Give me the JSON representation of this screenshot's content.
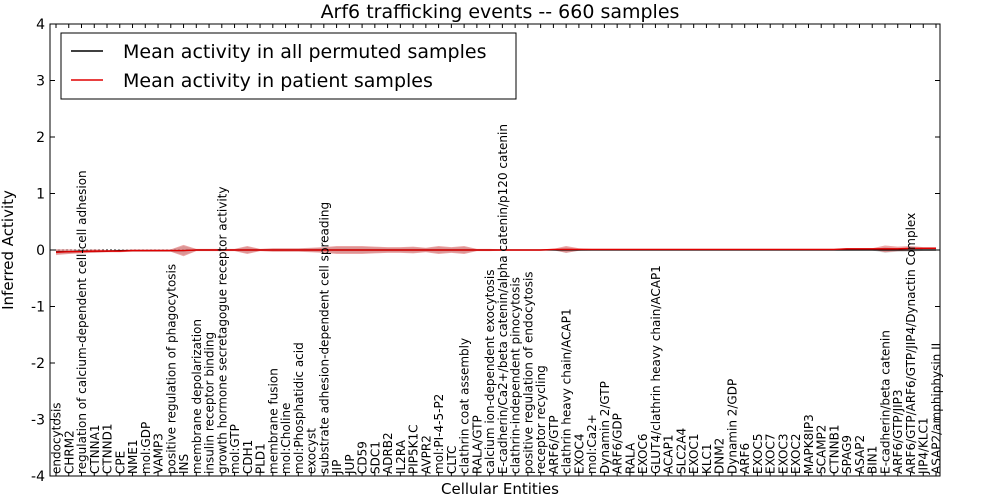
{
  "chart_data": {
    "type": "line",
    "title": "Arf6 trafficking events -- 660 samples",
    "xlabel": "Cellular Entities",
    "ylabel": "Inferred Activity",
    "ylim": [
      -4,
      4
    ],
    "yticks": [
      -4,
      -3,
      -2,
      -1,
      0,
      1,
      2,
      3,
      4
    ],
    "legend_position": "top-left",
    "colors": {
      "permuted": "#000000",
      "patient": "#e00000",
      "band": "#e06060",
      "grey_band": "#b0b0b0"
    },
    "categories": [
      "endocytosis",
      "CHRM2",
      "regulation of calcium-dependent cell-cell adhesion",
      "CTNNA1",
      "CTNND1",
      "CPE",
      "NME1",
      "mol:GDP",
      "VAMP3",
      "positive regulation of phagocytosis",
      "INS",
      "membrane depolarization",
      "insulin receptor binding",
      "growth hormone secretagogue receptor activity",
      "mol:GTP",
      "CDH1",
      "PLD1",
      "membrane fusion",
      "mol:Choline",
      "mol:Phosphatidic acid",
      "exocyst",
      "substrate adhesion-dependent cell spreading",
      "JIP",
      "JUP",
      "CD59",
      "SDC1",
      "ADRB2",
      "IL2RA",
      "PIP5K1C",
      "AVPR2",
      "mol:PI-4-5-P2",
      "CLTC",
      "clathrin coat assembly",
      "RALA/GTP",
      "calcium ion-dependent exocytosis",
      "E-cadherin/Ca2+/beta catenin/alpha catenin/p120 catenin",
      "clathrin-independent pinocytosis",
      "positive regulation of endocytosis",
      "receptor recycling",
      "ARF6/GTP",
      "clathrin heavy chain/ACAP1",
      "EXOC4",
      "mol:Ca2+",
      "Dynamin 2/GTP",
      "ARF6/GDP",
      "RALA",
      "EXOC6",
      "GLUT4/clathrin heavy chain/ACAP1",
      "ACAP1",
      "SLC2A4",
      "EXOC1",
      "KLC1",
      "DNM2",
      "Dynamin 2/GDP",
      "ARF6",
      "EXOC5",
      "EXOC7",
      "EXOC3",
      "EXOC2",
      "MAPK8IP3",
      "SCAMP2",
      "CTNNB1",
      "SPAG9",
      "ASAP2",
      "BIN1",
      "E-cadherin/beta catenin",
      "ARF6/GTP/JIP3",
      "ARF6/GTP/ARF6/GTP/JIP4/Dynactin Complex",
      "JIP4/KLC1",
      "ASAP2/amphiphysin II"
    ],
    "series": [
      {
        "name": "Mean activity in all permuted samples",
        "color": "#000000",
        "values": [
          -0.03,
          -0.03,
          -0.02,
          -0.02,
          -0.02,
          -0.01,
          -0.01,
          -0.01,
          -0.01,
          -0.01,
          -0.01,
          0,
          0,
          0,
          0,
          0,
          0,
          0,
          0,
          0,
          0,
          0,
          0,
          0,
          0,
          0,
          0,
          0,
          0,
          0,
          0,
          0,
          0,
          0,
          0,
          0,
          0,
          0,
          0,
          0,
          0,
          0,
          0,
          0,
          0,
          0,
          0,
          0,
          0,
          0,
          0,
          0,
          0,
          0,
          0,
          0,
          0,
          0,
          0,
          0,
          0,
          0,
          0,
          0,
          0,
          0,
          0,
          0,
          0,
          0
        ]
      },
      {
        "name": "Mean activity in patient samples",
        "color": "#e00000",
        "values": [
          -0.04,
          -0.03,
          -0.03,
          -0.02,
          -0.02,
          -0.02,
          -0.01,
          -0.01,
          -0.01,
          -0.01,
          -0.01,
          0,
          0,
          0,
          0,
          0,
          0,
          0,
          0,
          0,
          0,
          0,
          0,
          0,
          0,
          0,
          0,
          0,
          0,
          0,
          0,
          0,
          0,
          0,
          0,
          0,
          0,
          0,
          0,
          0.01,
          0.01,
          0.01,
          0.01,
          0.01,
          0.01,
          0.01,
          0.01,
          0.01,
          0.01,
          0.01,
          0.01,
          0.01,
          0.01,
          0.01,
          0.01,
          0.01,
          0.01,
          0.01,
          0.01,
          0.01,
          0.01,
          0.01,
          0.02,
          0.02,
          0.02,
          0.02,
          0.02,
          0.03,
          0.03,
          0.03
        ]
      }
    ],
    "band_halfwidth": [
      0.05,
      0.04,
      0.03,
      0.03,
      0.02,
      0.02,
      0.02,
      0.02,
      0.02,
      0.02,
      0.1,
      0.02,
      0.02,
      0.02,
      0.02,
      0.07,
      0.02,
      0.03,
      0.03,
      0.03,
      0.04,
      0.05,
      0.07,
      0.07,
      0.07,
      0.06,
      0.05,
      0.05,
      0.06,
      0.04,
      0.07,
      0.05,
      0.07,
      0.02,
      0.02,
      0.01,
      0.01,
      0.01,
      0.01,
      0.01,
      0.06,
      0.02,
      0.01,
      0.01,
      0.01,
      0.01,
      0.01,
      0.01,
      0.01,
      0.01,
      0.01,
      0.01,
      0.01,
      0.01,
      0.01,
      0.01,
      0.01,
      0.01,
      0.01,
      0.01,
      0.01,
      0.01,
      0.01,
      0.01,
      0.01,
      0.06,
      0.04,
      0.04,
      0.02,
      0.02
    ]
  }
}
